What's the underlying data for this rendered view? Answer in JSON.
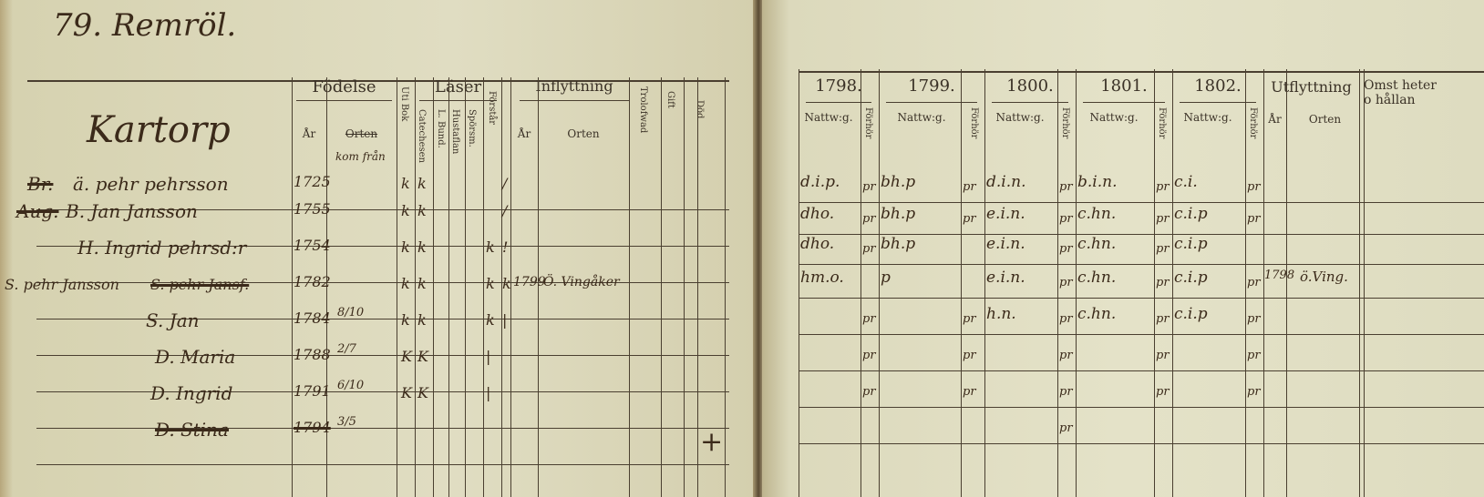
{
  "left_page": {
    "page_heading": "79. Remröl.",
    "place_heading": "Kartorp",
    "headers": {
      "fodelse": "Födelse",
      "ar": "År",
      "orten": "Orten",
      "kom_fran": "kom från",
      "uti_bok": "Uti Bok",
      "laser": "Läser",
      "catechesen": "Catechesen",
      "l_bund": "L. Bund.",
      "huestaflan": "Hustaflan",
      "epodresm": "Spörsm.",
      "forstar": "Förstår",
      "insflyttning": "Inflyttning",
      "ins_ar": "År",
      "ins_orten": "Orten",
      "trolofwad": "Trolofwad",
      "gift": "Gift",
      "dod": "Död"
    },
    "rows": [
      {
        "prefix": "Br.",
        "name": "ä. pehr pehrsson",
        "year": "1725",
        "date": "",
        "uti_bok": "k",
        "cat": "k",
        "c3": "",
        "c4": "",
        "c5": "",
        "forstar": "/",
        "in_year": "",
        "in_place": "",
        "dod": ""
      },
      {
        "prefix": "Aug.",
        "name": "B. Jan Jansson",
        "year": "1755",
        "date": "",
        "uti_bok": "k",
        "cat": "k",
        "c3": "",
        "c4": "",
        "c5": "",
        "forstar": "/",
        "in_year": "",
        "in_place": "",
        "dod": ""
      },
      {
        "prefix": "",
        "name": "H. Ingrid pehrsd:r",
        "year": "1754",
        "date": "",
        "uti_bok": "k",
        "cat": "k",
        "c3": "",
        "c4": "",
        "c5": "k",
        "forstar": "!",
        "in_year": "",
        "in_place": "",
        "dod": ""
      },
      {
        "prefix": "S. pehr Jansf.",
        "name": "S. pehr Jansson",
        "year": "1782",
        "date": "",
        "uti_bok": "k",
        "cat": "k",
        "c3": "",
        "c4": "",
        "c5": "k",
        "forstar": "k",
        "in_year": "1799",
        "in_place": "Ö. Vingåker",
        "dod": ""
      },
      {
        "prefix": "",
        "name": "S. Jan",
        "year": "1784",
        "date": "8/10",
        "uti_bok": "k",
        "cat": "k",
        "c3": "",
        "c4": "",
        "c5": "k",
        "forstar": "|",
        "in_year": "",
        "in_place": "",
        "dod": ""
      },
      {
        "prefix": "",
        "name": "D. Maria",
        "year": "1788",
        "date": "2/7",
        "uti_bok": "K",
        "cat": "K",
        "c3": "",
        "c4": "",
        "c5": "|",
        "forstar": "",
        "in_year": "",
        "in_place": "",
        "dod": ""
      },
      {
        "prefix": "",
        "name": "D. Ingrid",
        "year": "1791",
        "date": "6/10",
        "uti_bok": "K",
        "cat": "K",
        "c3": "",
        "c4": "",
        "c5": "|",
        "forstar": "",
        "in_year": "",
        "in_place": "",
        "dod": ""
      },
      {
        "prefix": "",
        "name": "D. Stina",
        "struck": true,
        "year": "1794",
        "date": "3/5",
        "uti_bok": "",
        "cat": "",
        "c3": "",
        "c4": "",
        "c5": "",
        "forstar": "",
        "in_year": "",
        "in_place": "",
        "dod": "+"
      }
    ]
  },
  "right_page": {
    "years": [
      "1798.",
      "1799.",
      "1800.",
      "1801.",
      "1802."
    ],
    "nattwg": "Nattw:g.",
    "forhor": "Förhör",
    "utflyttning": "Utflyttning",
    "ut_ar": "År",
    "ut_orten": "Orten",
    "omst": "Omst heter o hållan",
    "rows": [
      {
        "cells": [
          "d.i.p.",
          "pr",
          "bh.p",
          "pr",
          "d.i.n.",
          "pr",
          "b.i.n.",
          "pr",
          "c.i.",
          "pr"
        ],
        "ut_year": "",
        "ut_place": ""
      },
      {
        "cells": [
          "dho.",
          "pr",
          "bh.p",
          "pr",
          "e.i.n.",
          "pr",
          "c.hn.",
          "pr",
          "c.i.p",
          "pr"
        ],
        "ut_year": "",
        "ut_place": ""
      },
      {
        "cells": [
          "dho.",
          "pr",
          "bh.p",
          "",
          "e.i.n.",
          "pr",
          "c.hn.",
          "pr",
          "c.i.p",
          ""
        ],
        "ut_year": "",
        "ut_place": ""
      },
      {
        "cells": [
          "hm.o.",
          "",
          "p",
          "",
          "e.i.n.",
          "pr",
          "c.hn.",
          "pr",
          "c.i.p",
          "pr"
        ],
        "ut_year": "1798",
        "ut_place": "ö.Ving."
      },
      {
        "cells": [
          "",
          "pr",
          "",
          "pr",
          "h.n.",
          "pr",
          "c.hn.",
          "pr",
          "c.i.p",
          "pr"
        ],
        "ut_year": "",
        "ut_place": ""
      },
      {
        "cells": [
          "",
          "pr",
          "",
          "pr",
          "",
          "pr",
          "",
          "pr",
          "",
          "pr"
        ],
        "ut_year": "",
        "ut_place": ""
      },
      {
        "cells": [
          "",
          "pr",
          "",
          "pr",
          "",
          "pr",
          "",
          "pr",
          "",
          "pr"
        ],
        "ut_year": "",
        "ut_place": ""
      },
      {
        "cells": [
          "",
          "",
          "",
          "",
          "",
          "pr",
          "",
          "",
          "",
          ""
        ],
        "ut_year": "",
        "ut_place": ""
      }
    ]
  },
  "colors": {
    "paper": "#e0ddc2",
    "ink": "#3b2a1a",
    "spine": "#5a4a33"
  }
}
